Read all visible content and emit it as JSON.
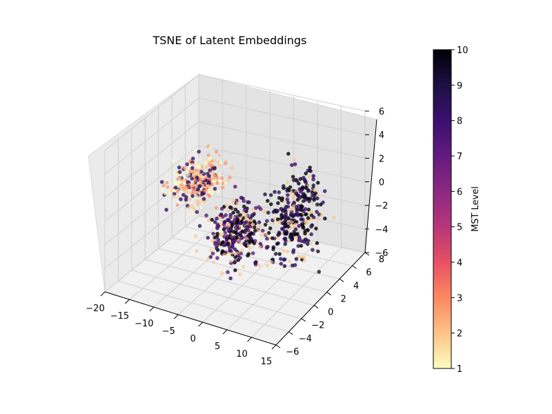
{
  "chart_data": {
    "type": "scatter",
    "title": "TSNE of Latent Embeddings",
    "xlabel": "",
    "ylabel": "",
    "zlabel": "",
    "projection": "3d",
    "xlim": [
      -20,
      15
    ],
    "ylim": [
      -6,
      8
    ],
    "zlim": [
      -6,
      6
    ],
    "x_ticks": [
      "−20",
      "−15",
      "−10",
      "−5",
      "0",
      "5",
      "10",
      "15"
    ],
    "y_ticks": [
      "−6",
      "−4",
      "−2",
      "0",
      "2",
      "4",
      "6",
      "8"
    ],
    "z_ticks": [
      "−6",
      "−4",
      "−2",
      "0",
      "2",
      "4",
      "6"
    ],
    "grid": true,
    "colorbar": {
      "label": "MST Level",
      "min": 1,
      "max": 10,
      "ticks": [
        "1",
        "2",
        "3",
        "4",
        "5",
        "6",
        "7",
        "8",
        "9",
        "10"
      ],
      "colormap": "magma_r",
      "colors": [
        "#fcfdbf",
        "#fec287",
        "#fc8961",
        "#e65164",
        "#b73779",
        "#8c2981",
        "#641a80",
        "#3b0f70",
        "#1c1044",
        "#000004"
      ]
    },
    "point_clusters": [
      {
        "region": "left",
        "x_range": [
          -18,
          -6
        ],
        "y_range": [
          -2,
          6
        ],
        "z_range": [
          -2,
          3
        ],
        "mst_levels_typical": [
          1,
          2,
          3,
          8
        ]
      },
      {
        "region": "center",
        "x_range": [
          -8,
          6
        ],
        "y_range": [
          -4,
          4
        ],
        "z_range": [
          -5,
          2
        ],
        "mst_levels_typical": [
          2,
          7,
          8,
          10
        ]
      },
      {
        "region": "right",
        "x_range": [
          2,
          14
        ],
        "y_range": [
          -2,
          7
        ],
        "z_range": [
          -6,
          5
        ],
        "mst_levels_typical": [
          8,
          9,
          10,
          2
        ]
      }
    ],
    "approx_point_count": 900
  }
}
